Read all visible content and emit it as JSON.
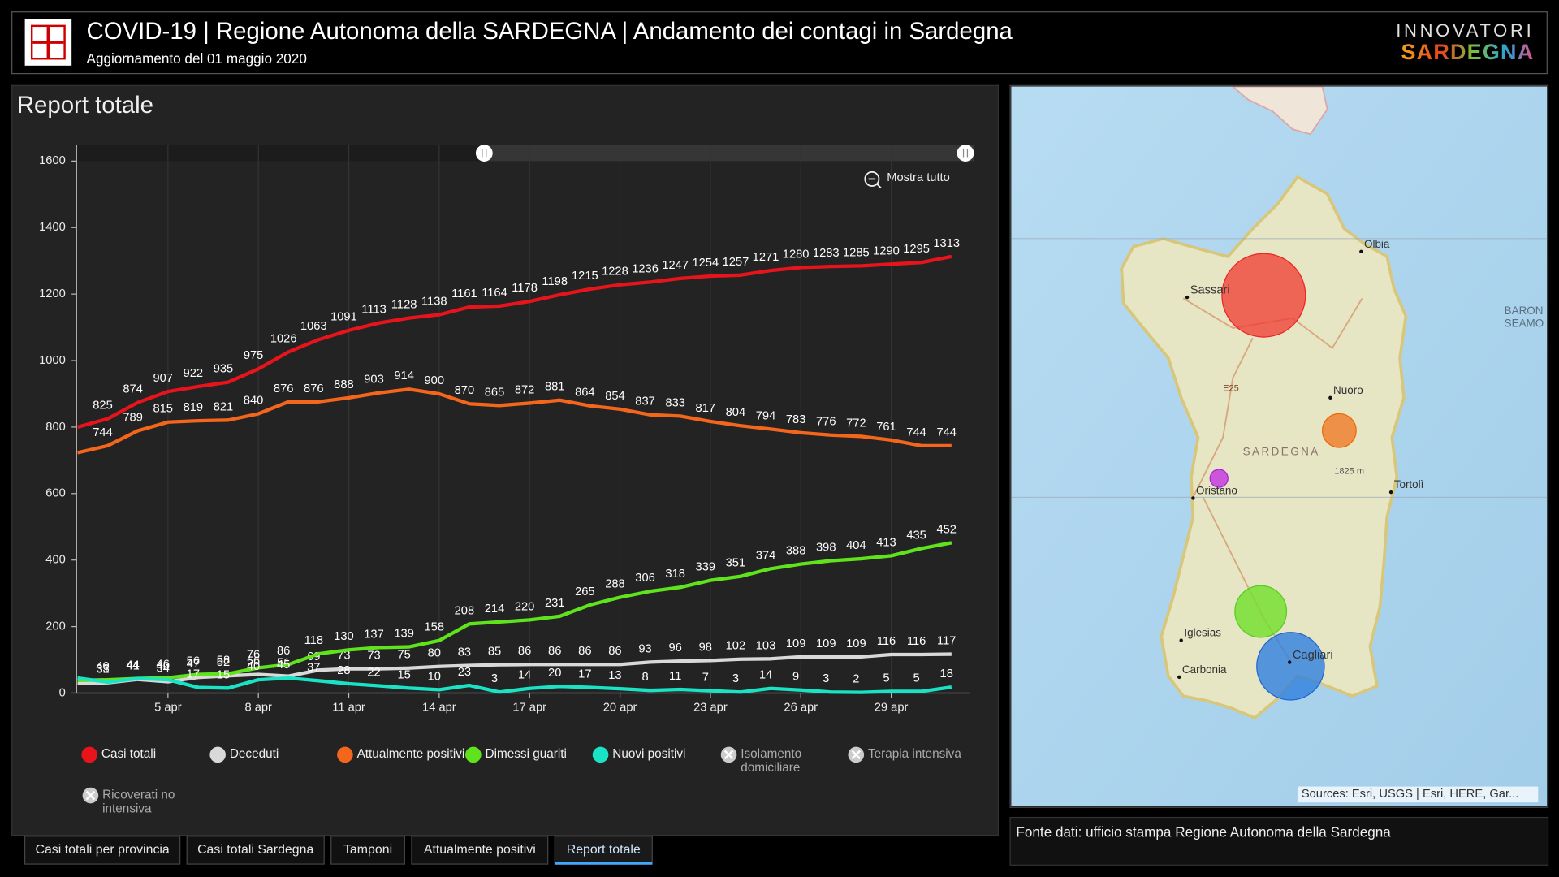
{
  "header": {
    "title": "COVID-19 | Regione Autonoma della SARDEGNA | Andamento dei contagi in Sardegna",
    "subtitle": "Aggiornamento del 01 maggio 2020",
    "logo_top": "INNOVATORI",
    "logo_bottom": "SARDEGNA"
  },
  "chart_data": {
    "type": "line",
    "title": "Report totale",
    "zoom_button": "Mostra tutto",
    "categories": [
      null,
      null,
      null,
      "5 apr",
      null,
      null,
      "8 apr",
      null,
      null,
      "11 apr",
      null,
      null,
      "14 apr",
      null,
      null,
      "17 apr",
      null,
      null,
      "20 apr",
      null,
      null,
      "23 apr",
      null,
      null,
      "26 apr",
      null,
      null,
      "29 apr",
      null,
      null
    ],
    "ylim": [
      0,
      1600
    ],
    "yticks": [
      0,
      200,
      400,
      600,
      800,
      1000,
      1200,
      1400,
      1600
    ],
    "grid": true,
    "series": [
      {
        "name": "Casi totali",
        "color": "#e8141c",
        "values": [
          800,
          825,
          874,
          907,
          922,
          935,
          975,
          1026,
          1063,
          1091,
          1113,
          1128,
          1138,
          1161,
          1164,
          1178,
          1198,
          1215,
          1228,
          1236,
          1247,
          1254,
          1257,
          1271,
          1280,
          1283,
          1285,
          1290,
          1295,
          1313
        ]
      },
      {
        "name": "Deceduti",
        "color": "#d9d9d9",
        "values": [
          30,
          31,
          41,
          34,
          47,
          52,
          56,
          51,
          69,
          73,
          73,
          75,
          80,
          83,
          85,
          86,
          86,
          86,
          86,
          93,
          96,
          98,
          102,
          103,
          109,
          109,
          109,
          116,
          116,
          117
        ]
      },
      {
        "name": "Attualmente positivi",
        "color": "#f4661b",
        "values": [
          723,
          744,
          789,
          815,
          819,
          821,
          840,
          876,
          876,
          888,
          903,
          914,
          900,
          870,
          865,
          872,
          881,
          864,
          854,
          837,
          833,
          817,
          804,
          794,
          783,
          776,
          772,
          761,
          744,
          744
        ]
      },
      {
        "name": "Dimessi guariti",
        "color": "#5fe31c",
        "values": [
          38,
          40,
          44,
          46,
          56,
          58,
          76,
          86,
          118,
          130,
          137,
          139,
          158,
          208,
          214,
          220,
          231,
          265,
          288,
          306,
          318,
          339,
          351,
          374,
          388,
          398,
          404,
          413,
          435,
          452
        ]
      },
      {
        "name": "Nuovi positivi",
        "color": "#19e3c4",
        "values": [
          45,
          33,
          44,
          40,
          17,
          15,
          40,
          45,
          37,
          28,
          22,
          15,
          10,
          23,
          3,
          14,
          20,
          17,
          13,
          8,
          11,
          7,
          3,
          14,
          9,
          3,
          2,
          5,
          5,
          18
        ]
      }
    ],
    "hidden_series": [
      "Isolamento domiciliare",
      "Terapia intensiva",
      "Ricoverati no intensiva"
    ]
  },
  "map": {
    "labels": [
      "Olbia",
      "Sassari",
      "Nuoro",
      "SARDEGNA",
      "1825 m",
      "Oristano",
      "Tortolì",
      "Iglesias",
      "Carbonia",
      "Cagliari",
      "E25",
      "BARON",
      "SEAMO"
    ],
    "attribution": "Sources: Esri, USGS | Esri, HERE, Gar..."
  },
  "source": "Fonte dati: ufficio stampa Regione Autonoma della Sardegna",
  "tabs": [
    "Casi totali per provincia",
    "Casi totali Sardegna",
    "Tamponi",
    "Attualmente positivi",
    "Report totale"
  ],
  "active_tab": 4
}
